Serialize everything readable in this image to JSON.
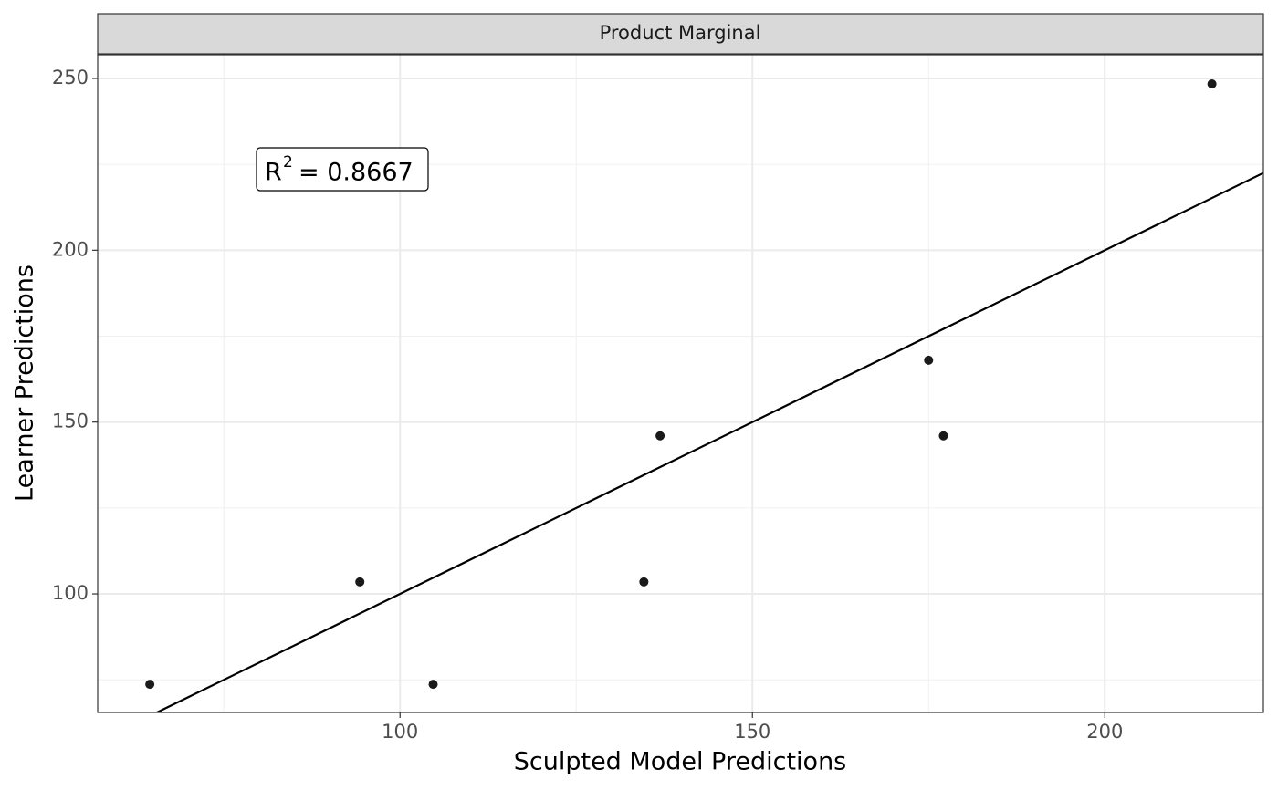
{
  "chart_data": {
    "type": "scatter",
    "strip": "Product Marginal",
    "x_label": "Sculpted Model Predictions",
    "y_label": "Learner Predictions",
    "x": [
      64.5,
      94.3,
      104.7,
      134.6,
      136.9,
      175.0,
      177.1,
      215.2
    ],
    "values": [
      73.7,
      103.5,
      73.7,
      103.5,
      146,
      168,
      146,
      248.4
    ],
    "color": "#1a1a1a",
    "xlim": [
      57.1,
      222.5
    ],
    "ylim": [
      65.5,
      256.9
    ],
    "xticks": [
      100,
      150,
      200
    ],
    "yticks": [
      100,
      150,
      200,
      250
    ],
    "x_minor_grid": [
      75,
      125,
      175
    ],
    "y_minor_grid": [
      75,
      125,
      175,
      225
    ],
    "grid": true,
    "reference_line": {
      "slope": 1,
      "intercept": 0,
      "color": "#000000"
    },
    "annotation": {
      "base": "R",
      "superscript": "2",
      "text": "= 0.8667"
    }
  }
}
